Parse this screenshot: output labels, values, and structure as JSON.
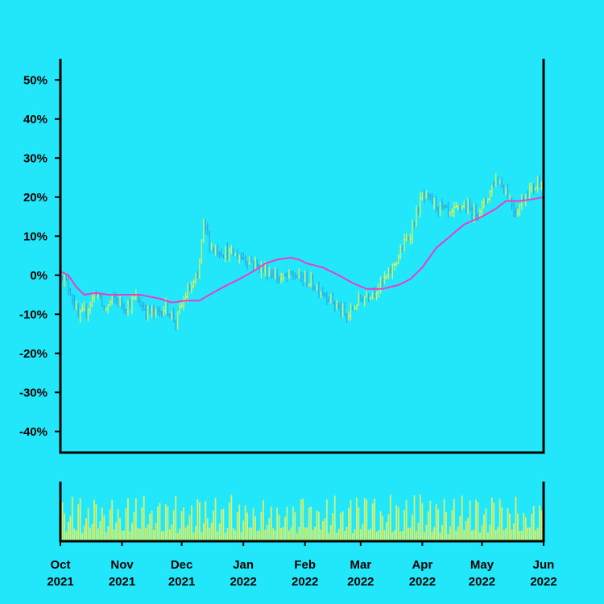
{
  "colors": {
    "background": "#22E7FB",
    "up": "#E6F34A",
    "down": "#2FA6E6",
    "moving_average": "#E83FC4",
    "volume": "#D6F26A",
    "axis": "#000000"
  },
  "chart_data": {
    "type": "ohlc",
    "title": "",
    "xlabel": "",
    "ylabel": "",
    "ylim": [
      -45,
      55
    ],
    "y_ticks": [
      50,
      40,
      30,
      20,
      10,
      0,
      -10,
      -20,
      -30,
      -40
    ],
    "y_tick_labels": [
      "50%",
      "40%",
      "30%",
      "20%",
      "10%",
      "0%",
      "-10%",
      "-20%",
      "-30%",
      "-40%"
    ],
    "x_range": [
      "2021-10-01",
      "2022-06-01"
    ],
    "x_ticks": [
      {
        "date": "2021-10-01",
        "month": "Oct",
        "year": "2021"
      },
      {
        "date": "2021-11-01",
        "month": "Nov",
        "year": "2021"
      },
      {
        "date": "2021-12-01",
        "month": "Dec",
        "year": "2021"
      },
      {
        "date": "2022-01-01",
        "month": "Jan",
        "year": "2022"
      },
      {
        "date": "2022-02-01",
        "month": "Feb",
        "year": "2022"
      },
      {
        "date": "2022-03-01",
        "month": "Mar",
        "year": "2022"
      },
      {
        "date": "2022-04-01",
        "month": "Apr",
        "year": "2022"
      },
      {
        "date": "2022-05-01",
        "month": "May",
        "year": "2022"
      },
      {
        "date": "2022-06-01",
        "month": "Jun",
        "year": "2022"
      }
    ],
    "price_path": [
      [
        "2021-10-01",
        1
      ],
      [
        "2021-10-06",
        -4
      ],
      [
        "2021-10-10",
        -11
      ],
      [
        "2021-10-14",
        -9
      ],
      [
        "2021-10-19",
        -4
      ],
      [
        "2021-10-23",
        -9
      ],
      [
        "2021-10-28",
        -6
      ],
      [
        "2021-11-03",
        -8
      ],
      [
        "2021-11-08",
        -6
      ],
      [
        "2021-11-13",
        -9
      ],
      [
        "2021-11-18",
        -10
      ],
      [
        "2021-11-23",
        -8
      ],
      [
        "2021-11-28",
        -12
      ],
      [
        "2021-12-03",
        -5
      ],
      [
        "2021-12-09",
        -1
      ],
      [
        "2021-12-12",
        13
      ],
      [
        "2021-12-16",
        7
      ],
      [
        "2021-12-22",
        6
      ],
      [
        "2021-12-29",
        5
      ],
      [
        "2022-01-04",
        4
      ],
      [
        "2022-01-09",
        2
      ],
      [
        "2022-01-14",
        1
      ],
      [
        "2022-01-20",
        -1
      ],
      [
        "2022-01-26",
        0
      ],
      [
        "2022-02-01",
        -1
      ],
      [
        "2022-02-07",
        -3
      ],
      [
        "2022-02-12",
        -5
      ],
      [
        "2022-02-17",
        -8
      ],
      [
        "2022-02-22",
        -11
      ],
      [
        "2022-02-27",
        -7
      ],
      [
        "2022-03-04",
        -5
      ],
      [
        "2022-03-10",
        -3
      ],
      [
        "2022-03-15",
        0
      ],
      [
        "2022-03-20",
        5
      ],
      [
        "2022-03-26",
        11
      ],
      [
        "2022-04-01",
        20
      ],
      [
        "2022-04-05",
        19
      ],
      [
        "2022-04-11",
        17
      ],
      [
        "2022-04-15",
        15
      ],
      [
        "2022-04-21",
        18
      ],
      [
        "2022-04-27",
        16
      ],
      [
        "2022-05-02",
        18
      ],
      [
        "2022-05-08",
        25
      ],
      [
        "2022-05-13",
        22
      ],
      [
        "2022-05-18",
        16
      ],
      [
        "2022-05-23",
        21
      ],
      [
        "2022-05-28",
        23
      ],
      [
        "2022-06-01",
        26
      ]
    ],
    "moving_average": [
      [
        "2021-10-01",
        1
      ],
      [
        "2021-10-05",
        0
      ],
      [
        "2021-10-09",
        -3
      ],
      [
        "2021-10-13",
        -5
      ],
      [
        "2021-10-19",
        -4.5
      ],
      [
        "2021-10-25",
        -5
      ],
      [
        "2021-11-01",
        -5
      ],
      [
        "2021-11-10",
        -5
      ],
      [
        "2021-11-20",
        -6
      ],
      [
        "2021-11-26",
        -7
      ],
      [
        "2021-12-03",
        -6.5
      ],
      [
        "2021-12-10",
        -6.5
      ],
      [
        "2021-12-15",
        -5
      ],
      [
        "2021-12-22",
        -3
      ],
      [
        "2021-12-30",
        -1
      ],
      [
        "2022-01-06",
        1
      ],
      [
        "2022-01-12",
        3
      ],
      [
        "2022-01-18",
        4
      ],
      [
        "2022-01-25",
        4.5
      ],
      [
        "2022-01-29",
        4
      ],
      [
        "2022-02-02",
        3
      ],
      [
        "2022-02-10",
        2
      ],
      [
        "2022-02-18",
        0
      ],
      [
        "2022-02-25",
        -2
      ],
      [
        "2022-03-04",
        -3.5
      ],
      [
        "2022-03-12",
        -3.5
      ],
      [
        "2022-03-20",
        -2.5
      ],
      [
        "2022-03-26",
        -1
      ],
      [
        "2022-04-01",
        2
      ],
      [
        "2022-04-08",
        7
      ],
      [
        "2022-04-15",
        10
      ],
      [
        "2022-04-22",
        13
      ],
      [
        "2022-05-01",
        15
      ],
      [
        "2022-05-08",
        17
      ],
      [
        "2022-05-13",
        19
      ],
      [
        "2022-05-20",
        19
      ],
      [
        "2022-05-27",
        19.5
      ],
      [
        "2022-06-01",
        20
      ]
    ],
    "volume": {
      "range": [
        0,
        10
      ],
      "pattern": [
        3,
        6,
        9,
        2,
        5,
        8,
        4,
        7,
        1,
        6,
        3,
        9,
        5,
        2,
        7,
        4,
        8,
        6,
        3,
        5,
        10,
        2,
        6,
        4,
        7,
        3,
        8,
        5
      ]
    }
  }
}
